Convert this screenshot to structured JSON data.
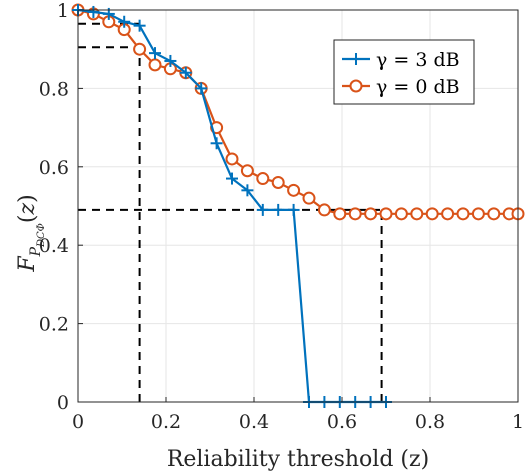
{
  "chart_data": {
    "type": "line",
    "xlabel": "Reliability threshold (z)",
    "ylabel": "F_{P_{DCΦ}}(z)",
    "xlim": [
      0,
      1
    ],
    "ylim": [
      0,
      1
    ],
    "x_ticks": [
      "0",
      "0.2",
      "0.4",
      "0.6",
      "0.8",
      "1"
    ],
    "y_ticks": [
      "0",
      "0.2",
      "0.4",
      "0.6",
      "0.8",
      "1"
    ],
    "x_tick_values": [
      0,
      0.2,
      0.4,
      0.6,
      0.8,
      1
    ],
    "y_tick_values": [
      0,
      0.2,
      0.4,
      0.6,
      0.8,
      1
    ],
    "grid": true,
    "legend_position": "top-right",
    "series": [
      {
        "name": "γ = 3 dB",
        "color": "#0072BD",
        "marker": "plus",
        "points": [
          [
            0.0,
            1.0
          ],
          [
            0.035,
            0.995
          ],
          [
            0.07,
            0.99
          ],
          [
            0.105,
            0.97
          ],
          [
            0.14,
            0.96
          ],
          [
            0.175,
            0.89
          ],
          [
            0.21,
            0.87
          ],
          [
            0.245,
            0.84
          ],
          [
            0.28,
            0.8
          ],
          [
            0.315,
            0.66
          ],
          [
            0.35,
            0.57
          ],
          [
            0.385,
            0.54
          ],
          [
            0.42,
            0.49
          ],
          [
            0.455,
            0.49
          ],
          [
            0.49,
            0.49
          ],
          [
            0.525,
            0.0
          ],
          [
            0.56,
            0.0
          ],
          [
            0.595,
            0.0
          ],
          [
            0.63,
            0.0
          ],
          [
            0.665,
            0.0
          ],
          [
            0.7,
            0.0
          ]
        ]
      },
      {
        "name": "γ = 0 dB",
        "color": "#D95319",
        "marker": "circle",
        "points": [
          [
            0.0,
            1.0
          ],
          [
            0.035,
            0.99
          ],
          [
            0.07,
            0.97
          ],
          [
            0.105,
            0.95
          ],
          [
            0.14,
            0.9
          ],
          [
            0.175,
            0.86
          ],
          [
            0.21,
            0.85
          ],
          [
            0.245,
            0.84
          ],
          [
            0.28,
            0.8
          ],
          [
            0.315,
            0.7
          ],
          [
            0.35,
            0.62
          ],
          [
            0.385,
            0.59
          ],
          [
            0.42,
            0.57
          ],
          [
            0.455,
            0.56
          ],
          [
            0.49,
            0.54
          ],
          [
            0.525,
            0.52
          ],
          [
            0.56,
            0.49
          ],
          [
            0.595,
            0.48
          ],
          [
            0.63,
            0.48
          ],
          [
            0.665,
            0.48
          ],
          [
            0.7,
            0.48
          ],
          [
            0.735,
            0.48
          ],
          [
            0.77,
            0.48
          ],
          [
            0.805,
            0.48
          ],
          [
            0.84,
            0.48
          ],
          [
            0.875,
            0.48
          ],
          [
            0.91,
            0.48
          ],
          [
            0.945,
            0.48
          ],
          [
            0.98,
            0.48
          ],
          [
            1.0,
            0.48
          ]
        ]
      }
    ],
    "reference_lines": [
      {
        "kind": "horizontal",
        "y": 0.965,
        "x_to": 0.14
      },
      {
        "kind": "horizontal",
        "y": 0.905,
        "x_to": 0.14
      },
      {
        "kind": "horizontal",
        "y": 0.49,
        "x_to": 0.69
      },
      {
        "kind": "vertical",
        "x": 0.14,
        "y_to": 0.9
      },
      {
        "kind": "vertical",
        "x": 0.69,
        "y_to": 0.48
      }
    ]
  }
}
